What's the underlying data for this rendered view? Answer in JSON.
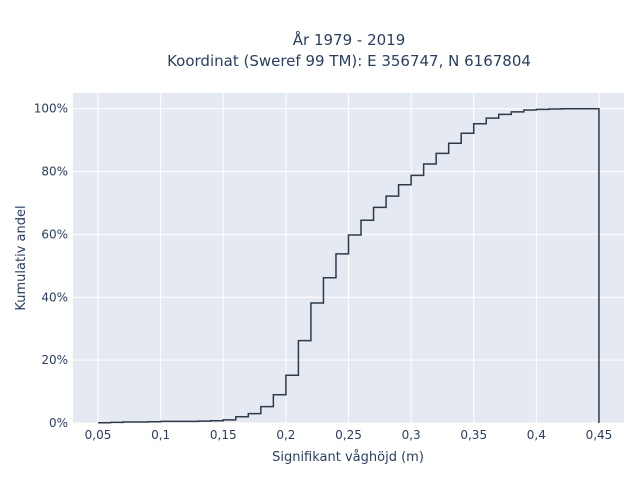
{
  "chart_data": {
    "type": "line",
    "title": "År 1979 - 2019",
    "subtitle": "Koordinat (Sweref 99 TM): E 356747, N 6167804",
    "xlabel": "Signifikant våghöjd (m)",
    "ylabel": "Kumulativ andel",
    "xlim": [
      0.03,
      0.47
    ],
    "ylim": [
      0,
      1.05
    ],
    "x_ticks": [
      {
        "value": 0.05,
        "label": "0,05"
      },
      {
        "value": 0.1,
        "label": "0,1"
      },
      {
        "value": 0.15,
        "label": "0,15"
      },
      {
        "value": 0.2,
        "label": "0,2"
      },
      {
        "value": 0.25,
        "label": "0,25"
      },
      {
        "value": 0.3,
        "label": "0,3"
      },
      {
        "value": 0.35,
        "label": "0,35"
      },
      {
        "value": 0.4,
        "label": "0,4"
      },
      {
        "value": 0.45,
        "label": "0,45"
      }
    ],
    "y_ticks": [
      {
        "value": 0,
        "label": "0%"
      },
      {
        "value": 0.2,
        "label": "20%"
      },
      {
        "value": 0.4,
        "label": "40%"
      },
      {
        "value": 0.6,
        "label": "60%"
      },
      {
        "value": 0.8,
        "label": "80%"
      },
      {
        "value": 1.0,
        "label": "100%"
      }
    ],
    "grid": true,
    "line_shape": "step",
    "colors": {
      "plot_bg": "#e5e9f2",
      "line": "#2d3a4a",
      "grid": "#ffffff"
    },
    "series": [
      {
        "x": [
          0.05,
          0.06,
          0.07,
          0.08,
          0.09,
          0.1,
          0.11,
          0.12,
          0.13,
          0.14,
          0.15,
          0.16,
          0.17,
          0.18,
          0.19,
          0.2,
          0.21,
          0.22,
          0.23,
          0.24,
          0.25,
          0.26,
          0.27,
          0.28,
          0.29,
          0.3,
          0.31,
          0.32,
          0.33,
          0.34,
          0.35,
          0.36,
          0.37,
          0.38,
          0.39,
          0.4,
          0.41,
          0.42,
          0.43,
          0.44,
          0.45
        ],
        "y": [
          0.001,
          0.002,
          0.003,
          0.003,
          0.004,
          0.005,
          0.005,
          0.005,
          0.006,
          0.007,
          0.01,
          0.02,
          0.03,
          0.052,
          0.09,
          0.152,
          0.262,
          0.382,
          0.462,
          0.538,
          0.598,
          0.645,
          0.686,
          0.722,
          0.758,
          0.788,
          0.824,
          0.858,
          0.89,
          0.922,
          0.952,
          0.97,
          0.982,
          0.99,
          0.996,
          0.998,
          0.999,
          1.0,
          1.0,
          1.0,
          0.0
        ]
      }
    ]
  }
}
